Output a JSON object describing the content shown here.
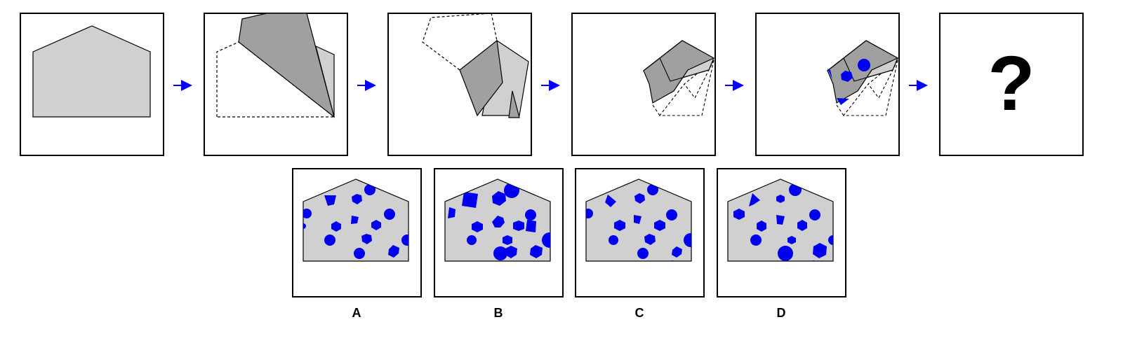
{
  "puzzle": {
    "colors": {
      "paper": "#d0d0d0",
      "paper_dark": "#a0a0a0",
      "hole": "#0000ee",
      "arrow": "#0000ff",
      "border": "#000000"
    },
    "question_mark": "?",
    "options": [
      {
        "label": "A"
      },
      {
        "label": "B"
      },
      {
        "label": "C"
      },
      {
        "label": "D"
      }
    ]
  }
}
